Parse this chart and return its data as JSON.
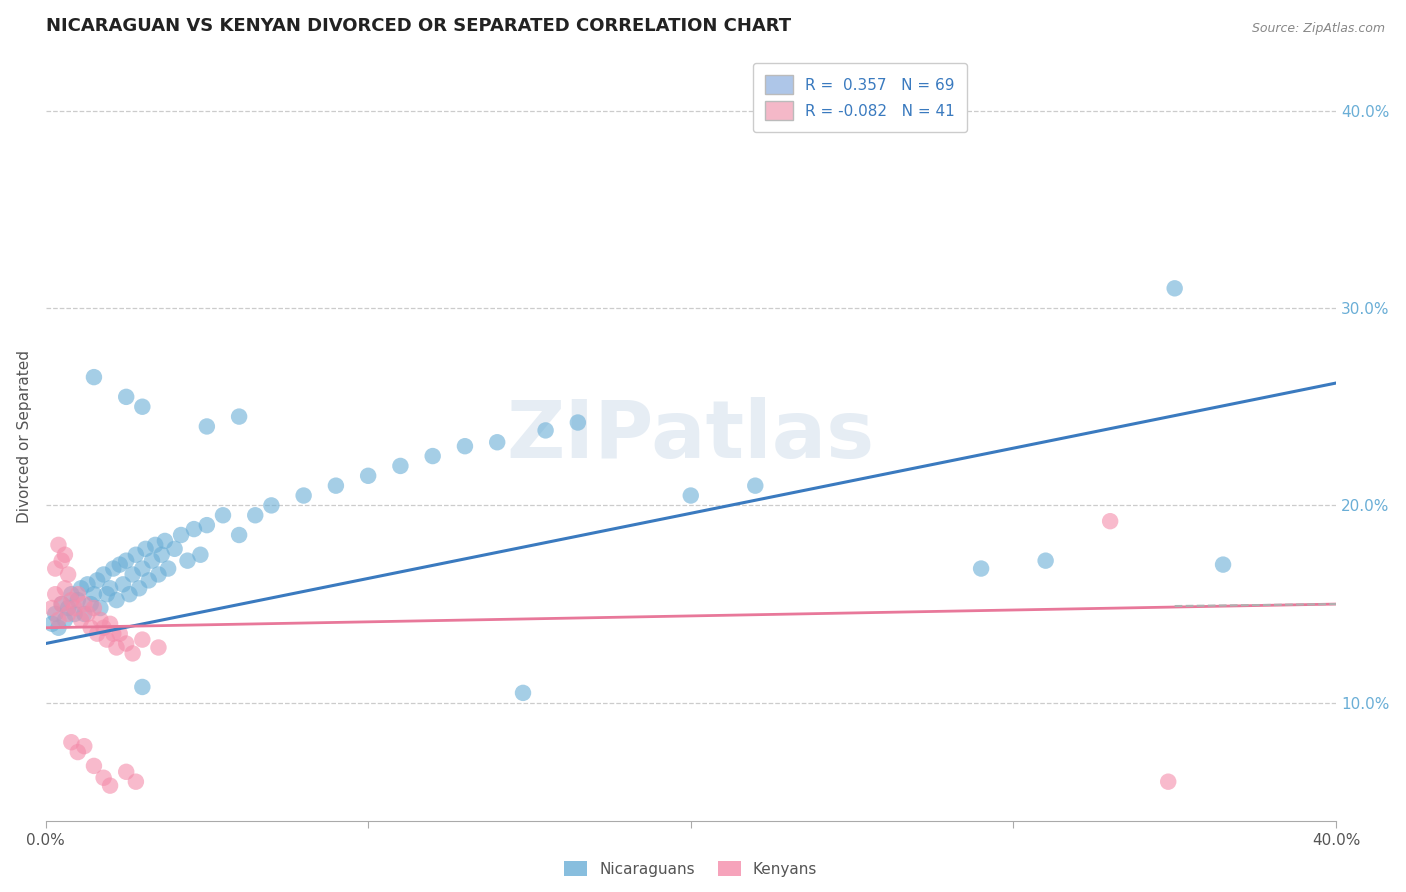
{
  "title": "NICARAGUAN VS KENYAN DIVORCED OR SEPARATED CORRELATION CHART",
  "source": "Source: ZipAtlas.com",
  "ylabel": "Divorced or Separated",
  "xlim": [
    0.0,
    0.4
  ],
  "ylim": [
    0.04,
    0.43
  ],
  "right_yticks": [
    0.1,
    0.2,
    0.3,
    0.4
  ],
  "right_ytick_labels": [
    "10.0%",
    "20.0%",
    "30.0%",
    "40.0%"
  ],
  "legend_labels": [
    "R =  0.357   N = 69",
    "R = -0.082   N = 41"
  ],
  "legend_colors": [
    "#aec6e8",
    "#f4b8c8"
  ],
  "nicaraguan_color": "#6aaed6",
  "kenyan_color": "#f48caa",
  "background_color": "#ffffff",
  "nicaraguan_scatter": [
    [
      0.002,
      0.14
    ],
    [
      0.003,
      0.145
    ],
    [
      0.004,
      0.138
    ],
    [
      0.005,
      0.15
    ],
    [
      0.006,
      0.142
    ],
    [
      0.007,
      0.148
    ],
    [
      0.008,
      0.155
    ],
    [
      0.009,
      0.145
    ],
    [
      0.01,
      0.152
    ],
    [
      0.011,
      0.158
    ],
    [
      0.012,
      0.145
    ],
    [
      0.013,
      0.16
    ],
    [
      0.014,
      0.15
    ],
    [
      0.015,
      0.155
    ],
    [
      0.016,
      0.162
    ],
    [
      0.017,
      0.148
    ],
    [
      0.018,
      0.165
    ],
    [
      0.019,
      0.155
    ],
    [
      0.02,
      0.158
    ],
    [
      0.021,
      0.168
    ],
    [
      0.022,
      0.152
    ],
    [
      0.023,
      0.17
    ],
    [
      0.024,
      0.16
    ],
    [
      0.025,
      0.172
    ],
    [
      0.026,
      0.155
    ],
    [
      0.027,
      0.165
    ],
    [
      0.028,
      0.175
    ],
    [
      0.029,
      0.158
    ],
    [
      0.03,
      0.168
    ],
    [
      0.031,
      0.178
    ],
    [
      0.032,
      0.162
    ],
    [
      0.033,
      0.172
    ],
    [
      0.034,
      0.18
    ],
    [
      0.035,
      0.165
    ],
    [
      0.036,
      0.175
    ],
    [
      0.037,
      0.182
    ],
    [
      0.038,
      0.168
    ],
    [
      0.04,
      0.178
    ],
    [
      0.042,
      0.185
    ],
    [
      0.044,
      0.172
    ],
    [
      0.046,
      0.188
    ],
    [
      0.048,
      0.175
    ],
    [
      0.05,
      0.19
    ],
    [
      0.055,
      0.195
    ],
    [
      0.06,
      0.185
    ],
    [
      0.065,
      0.195
    ],
    [
      0.07,
      0.2
    ],
    [
      0.08,
      0.205
    ],
    [
      0.09,
      0.21
    ],
    [
      0.1,
      0.215
    ],
    [
      0.015,
      0.265
    ],
    [
      0.025,
      0.255
    ],
    [
      0.03,
      0.25
    ],
    [
      0.05,
      0.24
    ],
    [
      0.06,
      0.245
    ],
    [
      0.11,
      0.22
    ],
    [
      0.12,
      0.225
    ],
    [
      0.13,
      0.23
    ],
    [
      0.14,
      0.232
    ],
    [
      0.155,
      0.238
    ],
    [
      0.165,
      0.242
    ],
    [
      0.2,
      0.205
    ],
    [
      0.22,
      0.21
    ],
    [
      0.29,
      0.168
    ],
    [
      0.31,
      0.172
    ],
    [
      0.35,
      0.31
    ],
    [
      0.365,
      0.17
    ],
    [
      0.03,
      0.108
    ],
    [
      0.148,
      0.105
    ]
  ],
  "kenyan_scatter": [
    [
      0.002,
      0.148
    ],
    [
      0.003,
      0.155
    ],
    [
      0.004,
      0.142
    ],
    [
      0.005,
      0.15
    ],
    [
      0.006,
      0.158
    ],
    [
      0.007,
      0.145
    ],
    [
      0.008,
      0.152
    ],
    [
      0.009,
      0.148
    ],
    [
      0.01,
      0.155
    ],
    [
      0.011,
      0.142
    ],
    [
      0.012,
      0.15
    ],
    [
      0.013,
      0.145
    ],
    [
      0.014,
      0.138
    ],
    [
      0.015,
      0.148
    ],
    [
      0.016,
      0.135
    ],
    [
      0.017,
      0.142
    ],
    [
      0.018,
      0.138
    ],
    [
      0.019,
      0.132
    ],
    [
      0.02,
      0.14
    ],
    [
      0.021,
      0.135
    ],
    [
      0.022,
      0.128
    ],
    [
      0.023,
      0.135
    ],
    [
      0.025,
      0.13
    ],
    [
      0.027,
      0.125
    ],
    [
      0.03,
      0.132
    ],
    [
      0.035,
      0.128
    ],
    [
      0.003,
      0.168
    ],
    [
      0.005,
      0.172
    ],
    [
      0.007,
      0.165
    ],
    [
      0.004,
      0.18
    ],
    [
      0.006,
      0.175
    ],
    [
      0.008,
      0.08
    ],
    [
      0.01,
      0.075
    ],
    [
      0.012,
      0.078
    ],
    [
      0.015,
      0.068
    ],
    [
      0.018,
      0.062
    ],
    [
      0.02,
      0.058
    ],
    [
      0.025,
      0.065
    ],
    [
      0.028,
      0.06
    ],
    [
      0.33,
      0.192
    ],
    [
      0.348,
      0.06
    ]
  ]
}
